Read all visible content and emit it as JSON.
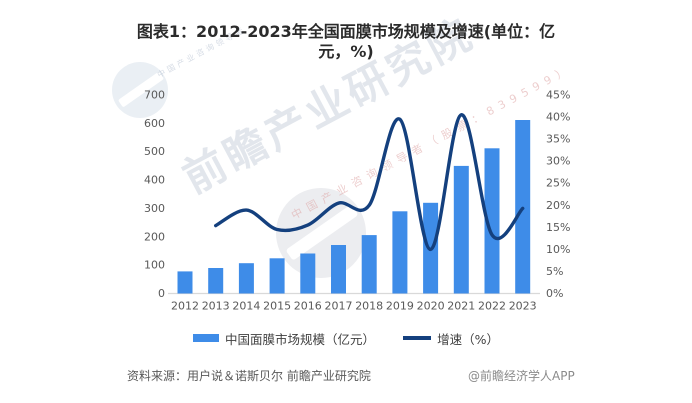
{
  "title": {
    "line1": "图表1：2012-2023年全国面膜市场规模及增速(单位：亿",
    "line2": "元，%)",
    "full": "图表1：2012-2023年全国面膜市场规模及增速(单位：亿元，%)"
  },
  "chart_data": {
    "type": "bar",
    "subtype": "combo-bar-line",
    "categories": [
      "2012",
      "2013",
      "2014",
      "2015",
      "2016",
      "2017",
      "2018",
      "2019",
      "2020",
      "2021",
      "2022",
      "2023"
    ],
    "series": [
      {
        "name": "中国面膜市场规模（亿元）",
        "kind": "bar",
        "axis": "left",
        "values": [
          78,
          90,
          107,
          124,
          141,
          171,
          206,
          290,
          320,
          450,
          512,
          612
        ]
      },
      {
        "name": "增速（%）",
        "kind": "line",
        "axis": "right",
        "values": [
          null,
          15.4,
          18.9,
          14.5,
          15.5,
          20.5,
          20.0,
          39.5,
          10.0,
          40.5,
          13.3,
          19.3
        ]
      }
    ],
    "left_axis": {
      "min": 0,
      "max": 700,
      "step": 100,
      "ticks": [
        "0",
        "100",
        "200",
        "300",
        "400",
        "500",
        "600",
        "700"
      ]
    },
    "right_axis": {
      "min": 0,
      "max": 45,
      "step": 5,
      "ticks": [
        "0%",
        "5%",
        "10%",
        "15%",
        "20%",
        "25%",
        "30%",
        "35%",
        "40%",
        "45%"
      ]
    },
    "grid": false,
    "legend_position": "bottom",
    "colors": {
      "bar": "#3e8ce8",
      "line": "#14407e",
      "axis_line": "#d9d9d9",
      "tick_text": "#595959"
    }
  },
  "legend": {
    "items": [
      {
        "label": "中国面膜市场规模（亿元）",
        "swatch": "bar"
      },
      {
        "label": "增速（%）",
        "swatch": "line"
      }
    ]
  },
  "watermark": {
    "brand": "前瞻产业研究院",
    "tagline": "中国产业咨询领导者（股票：839599）",
    "corner_tagline": "中国产业咨询领导者"
  },
  "footer": {
    "source": "资料来源：用户说＆诺斯贝尔 前瞻产业研究院",
    "credit": "@前瞻经济学人APP"
  }
}
